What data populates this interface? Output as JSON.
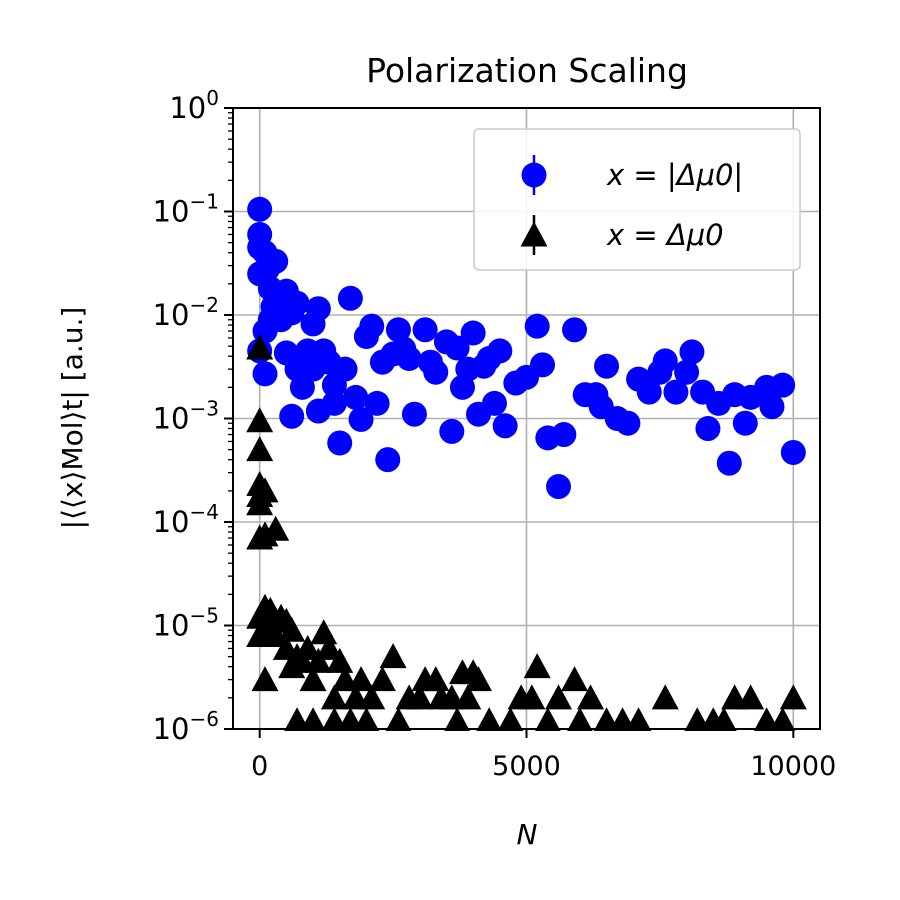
{
  "chart_data": {
    "type": "scatter",
    "title": "Polarization Scaling",
    "xlabel": "N",
    "ylabel": "|⟨⟨x⟩Mol⟩t| [a.u.]",
    "xlim": [
      -500,
      10500
    ],
    "ylim": [
      1e-06,
      1
    ],
    "yscale": "log",
    "grid": true,
    "legend_position": "top-right",
    "x_ticks": [
      0,
      5000,
      10000
    ],
    "x_tick_labels": [
      "0",
      "5000",
      "10000"
    ],
    "y_ticks": [
      1e-06,
      1e-05,
      0.0001,
      0.001,
      0.01,
      0.1,
      1
    ],
    "y_tick_labels": [
      {
        "base": "10",
        "exp": "−6"
      },
      {
        "base": "10",
        "exp": "−5"
      },
      {
        "base": "10",
        "exp": "−4"
      },
      {
        "base": "10",
        "exp": "−3"
      },
      {
        "base": "10",
        "exp": "−2"
      },
      {
        "base": "10",
        "exp": "−1"
      },
      {
        "base": "10",
        "exp": "0"
      }
    ],
    "series": [
      {
        "name": "x = |Δμ0|",
        "marker": "circle",
        "color": "#0000ff",
        "points": [
          [
            0,
            0.105
          ],
          [
            0,
            0.06
          ],
          [
            0,
            0.045
          ],
          [
            0,
            0.025
          ],
          [
            0,
            0.0045
          ],
          [
            100,
            0.04
          ],
          [
            100,
            0.007
          ],
          [
            100,
            0.0027
          ],
          [
            150,
            0.028
          ],
          [
            200,
            0.018
          ],
          [
            200,
            0.009
          ],
          [
            250,
            0.012
          ],
          [
            300,
            0.033
          ],
          [
            400,
            0.014
          ],
          [
            400,
            0.009
          ],
          [
            500,
            0.017
          ],
          [
            500,
            0.0043
          ],
          [
            600,
            0.0105
          ],
          [
            600,
            0.00105
          ],
          [
            700,
            0.013
          ],
          [
            700,
            0.003
          ],
          [
            800,
            0.002
          ],
          [
            900,
            0.0045
          ],
          [
            1000,
            0.0082
          ],
          [
            1000,
            0.003
          ],
          [
            1100,
            0.0115
          ],
          [
            1100,
            0.00118
          ],
          [
            1200,
            0.0045
          ],
          [
            1300,
            0.0035
          ],
          [
            1400,
            0.0014
          ],
          [
            1400,
            0.0021
          ],
          [
            1500,
            0.00058
          ],
          [
            1600,
            0.003
          ],
          [
            1700,
            0.0145
          ],
          [
            1800,
            0.0016
          ],
          [
            1900,
            0.00098
          ],
          [
            2000,
            0.0062
          ],
          [
            2100,
            0.0078
          ],
          [
            2200,
            0.0014
          ],
          [
            2300,
            0.0035
          ],
          [
            2400,
            0.0004
          ],
          [
            2500,
            0.0042
          ],
          [
            2600,
            0.0072
          ],
          [
            2700,
            0.0047
          ],
          [
            2800,
            0.0038
          ],
          [
            2900,
            0.0011
          ],
          [
            3100,
            0.0072
          ],
          [
            3200,
            0.0035
          ],
          [
            3300,
            0.0028
          ],
          [
            3500,
            0.0055
          ],
          [
            3600,
            0.00075
          ],
          [
            3700,
            0.0048
          ],
          [
            3800,
            0.002
          ],
          [
            3900,
            0.003
          ],
          [
            4000,
            0.0067
          ],
          [
            4100,
            0.0011
          ],
          [
            4200,
            0.0032
          ],
          [
            4300,
            0.0038
          ],
          [
            4400,
            0.0014
          ],
          [
            4500,
            0.0045
          ],
          [
            4600,
            0.00085
          ],
          [
            4800,
            0.0022
          ],
          [
            5000,
            0.0025
          ],
          [
            5200,
            0.0078
          ],
          [
            5300,
            0.0033
          ],
          [
            5400,
            0.00065
          ],
          [
            5600,
            0.00022
          ],
          [
            5700,
            0.0007
          ],
          [
            5900,
            0.0072
          ],
          [
            6100,
            0.0017
          ],
          [
            6300,
            0.0017
          ],
          [
            6400,
            0.0013
          ],
          [
            6500,
            0.0032
          ],
          [
            6700,
            0.001
          ],
          [
            6900,
            0.0009
          ],
          [
            7100,
            0.0024
          ],
          [
            7300,
            0.0018
          ],
          [
            7500,
            0.0028
          ],
          [
            7600,
            0.0036
          ],
          [
            7800,
            0.0018
          ],
          [
            8000,
            0.0028
          ],
          [
            8100,
            0.0044
          ],
          [
            8300,
            0.0018
          ],
          [
            8400,
            0.0008
          ],
          [
            8600,
            0.0014
          ],
          [
            8800,
            0.00037
          ],
          [
            8900,
            0.0017
          ],
          [
            9100,
            0.0009
          ],
          [
            9200,
            0.0016
          ],
          [
            9500,
            0.002
          ],
          [
            9600,
            0.0013
          ],
          [
            9800,
            0.0021
          ],
          [
            10000,
            0.00047
          ]
        ]
      },
      {
        "name": "x = Δμ0",
        "marker": "triangle",
        "color": "#000000",
        "points": [
          [
            0,
            0.0048
          ],
          [
            0,
            0.00095
          ],
          [
            0,
            0.0005
          ],
          [
            0,
            0.00023
          ],
          [
            0,
            0.00018
          ],
          [
            0,
            0.00015
          ],
          [
            0,
            7e-05
          ],
          [
            0,
            1.2e-05
          ],
          [
            0,
            8e-06
          ],
          [
            100,
            0.0002
          ],
          [
            100,
            7.5e-05
          ],
          [
            100,
            1.5e-05
          ],
          [
            100,
            3e-06
          ],
          [
            200,
            1.4e-05
          ],
          [
            200,
            1e-05
          ],
          [
            300,
            8.5e-05
          ],
          [
            300,
            8e-06
          ],
          [
            400,
            1.2e-05
          ],
          [
            500,
            1.1e-05
          ],
          [
            500,
            6e-06
          ],
          [
            600,
            9e-06
          ],
          [
            600,
            4e-06
          ],
          [
            700,
            5e-06
          ],
          [
            700,
            1.2e-06
          ],
          [
            800,
            4.5e-06
          ],
          [
            900,
            6e-06
          ],
          [
            1000,
            3e-06
          ],
          [
            1000,
            1.2e-06
          ],
          [
            1100,
            4.5e-06
          ],
          [
            1200,
            8.5e-06
          ],
          [
            1300,
            6e-06
          ],
          [
            1400,
            2e-06
          ],
          [
            1400,
            1.2e-06
          ],
          [
            1500,
            4.5e-06
          ],
          [
            1600,
            3e-06
          ],
          [
            1700,
            1.2e-06
          ],
          [
            1800,
            2e-06
          ],
          [
            1900,
            3e-06
          ],
          [
            2000,
            1.2e-06
          ],
          [
            2100,
            2e-06
          ],
          [
            2300,
            3e-06
          ],
          [
            2500,
            5e-06
          ],
          [
            2600,
            1.2e-06
          ],
          [
            2800,
            2e-06
          ],
          [
            3000,
            2e-06
          ],
          [
            3100,
            3e-06
          ],
          [
            3300,
            3e-06
          ],
          [
            3400,
            2e-06
          ],
          [
            3600,
            2e-06
          ],
          [
            3700,
            1.2e-06
          ],
          [
            3800,
            3.5e-06
          ],
          [
            3900,
            2e-06
          ],
          [
            4000,
            3.5e-06
          ],
          [
            4100,
            3e-06
          ],
          [
            4300,
            1.2e-06
          ],
          [
            4700,
            1.2e-06
          ],
          [
            4900,
            2e-06
          ],
          [
            5100,
            2e-06
          ],
          [
            5200,
            4e-06
          ],
          [
            5400,
            1.2e-06
          ],
          [
            5600,
            2e-06
          ],
          [
            5900,
            3e-06
          ],
          [
            6000,
            1.2e-06
          ],
          [
            6200,
            2e-06
          ],
          [
            6500,
            1.2e-06
          ],
          [
            6800,
            1.2e-06
          ],
          [
            7100,
            1.2e-06
          ],
          [
            7600,
            2e-06
          ],
          [
            8200,
            1.2e-06
          ],
          [
            8500,
            1.2e-06
          ],
          [
            8700,
            1.2e-06
          ],
          [
            8900,
            2e-06
          ],
          [
            9200,
            2e-06
          ],
          [
            9500,
            1.2e-06
          ],
          [
            9800,
            1.2e-06
          ],
          [
            10000,
            2e-06
          ]
        ]
      }
    ]
  }
}
